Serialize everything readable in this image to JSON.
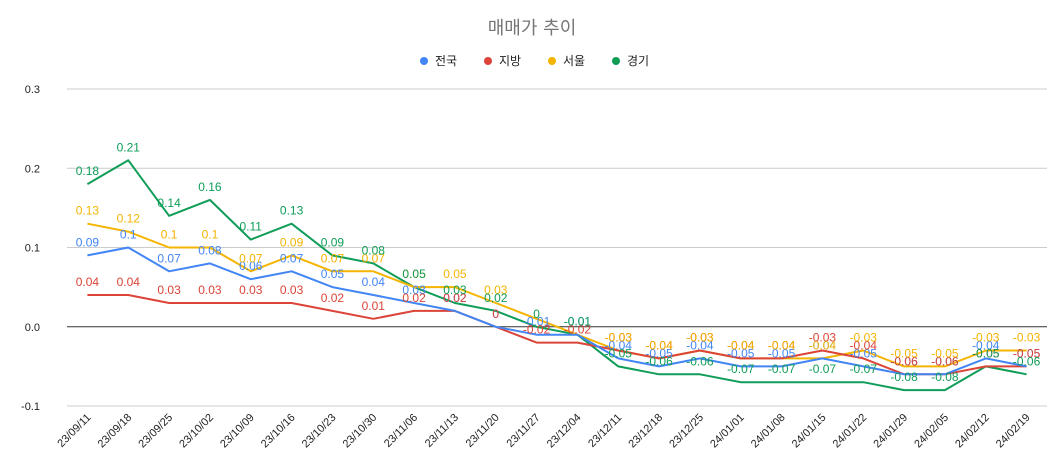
{
  "chart_data": {
    "type": "line",
    "title": "매매가 추이",
    "xlabel": "",
    "ylabel": "",
    "ylim": [
      -0.1,
      0.3
    ],
    "yticks": [
      "0.3",
      "0.2",
      "0.1",
      "0.0",
      "-0.1"
    ],
    "ytick_values": [
      0.3,
      0.2,
      0.1,
      0.0,
      -0.1
    ],
    "grid": true,
    "legend_position": "top",
    "categories": [
      "23/09/11",
      "23/09/18",
      "23/09/25",
      "23/10/02",
      "23/10/09",
      "23/10/16",
      "23/10/23",
      "23/10/30",
      "23/11/06",
      "23/11/13",
      "23/11/20",
      "23/11/27",
      "23/12/04",
      "23/12/11",
      "23/12/18",
      "23/12/25",
      "24/01/01",
      "24/01/08",
      "24/01/15",
      "24/01/22",
      "24/01/29",
      "24/02/05",
      "24/02/12",
      "24/02/19"
    ],
    "series": [
      {
        "name": "전국",
        "color": "#4285f4",
        "values": [
          0.09,
          0.1,
          0.07,
          0.08,
          0.06,
          0.07,
          0.05,
          0.04,
          0.03,
          0.02,
          0,
          -0.01,
          -0.01,
          -0.04,
          -0.05,
          -0.04,
          -0.05,
          -0.05,
          -0.04,
          -0.05,
          -0.06,
          -0.06,
          -0.04,
          -0.05
        ],
        "labels": [
          "0.09",
          "0.1",
          "0.07",
          "0.08",
          "0.06",
          "0.07",
          "0.05",
          "0.04",
          "0.03",
          "0.02",
          "0",
          "-0.01",
          "-0.01",
          "-0.04",
          "-0.05",
          "-0.04",
          "-0.05",
          "-0.05",
          "-0.04",
          "-0.05",
          "-0.06",
          "-0.06",
          "-0.04",
          "-0.05"
        ]
      },
      {
        "name": "지방",
        "color": "#db4437",
        "values": [
          0.04,
          0.04,
          0.03,
          0.03,
          0.03,
          0.03,
          0.02,
          0.01,
          0.02,
          0.02,
          0,
          -0.02,
          -0.02,
          -0.03,
          -0.04,
          -0.03,
          -0.04,
          -0.04,
          -0.03,
          -0.04,
          -0.06,
          -0.06,
          -0.05,
          -0.05
        ],
        "labels": [
          "0.04",
          "0.04",
          "0.03",
          "0.03",
          "0.03",
          "0.03",
          "0.02",
          "0.01",
          "0.02",
          "0.02",
          "0",
          "-0.02",
          "-0.02",
          "-0.03",
          "-0.04",
          "-0.03",
          "-0.04",
          "-0.04",
          "-0.03",
          "-0.04",
          "-0.06",
          "-0.06",
          "-0.05",
          "-0.05"
        ]
      },
      {
        "name": "서울",
        "color": "#f4b400",
        "values": [
          0.13,
          0.12,
          0.1,
          0.1,
          0.07,
          0.09,
          0.07,
          0.07,
          0.05,
          0.05,
          0.03,
          0.01,
          -0.01,
          -0.03,
          -0.04,
          -0.03,
          -0.04,
          -0.04,
          -0.04,
          -0.03,
          -0.05,
          -0.05,
          -0.03,
          -0.03
        ],
        "labels": [
          "0.13",
          "0.12",
          "0.1",
          "0.1",
          "0.07",
          "0.09",
          "0.07",
          "0.07",
          "0.05",
          "0.05",
          "0.03",
          "",
          "",
          "-0.03",
          "-0.04",
          "-0.03",
          "-0.04",
          "-0.04",
          "-0.04",
          "-0.03",
          "-0.05",
          "-0.05",
          "-0.03",
          "-0.03"
        ]
      },
      {
        "name": "경기",
        "color": "#0f9d58",
        "values": [
          0.18,
          0.21,
          0.14,
          0.16,
          0.11,
          0.13,
          0.09,
          0.08,
          0.05,
          0.03,
          0.02,
          0,
          -0.01,
          -0.05,
          -0.06,
          -0.06,
          -0.07,
          -0.07,
          -0.07,
          -0.07,
          -0.08,
          -0.08,
          -0.05,
          -0.06
        ],
        "labels": [
          "0.18",
          "0.21",
          "0.14",
          "0.16",
          "0.11",
          "0.13",
          "0.09",
          "0.08",
          "0.05",
          "0.03",
          "0.02",
          "0",
          "-0.01",
          "-0.05",
          "-0.06",
          "-0.06",
          "-0.07",
          "-0.07",
          "-0.07",
          "-0.07",
          "-0.08",
          "-0.08",
          "-0.05",
          "-0.06"
        ]
      }
    ]
  }
}
